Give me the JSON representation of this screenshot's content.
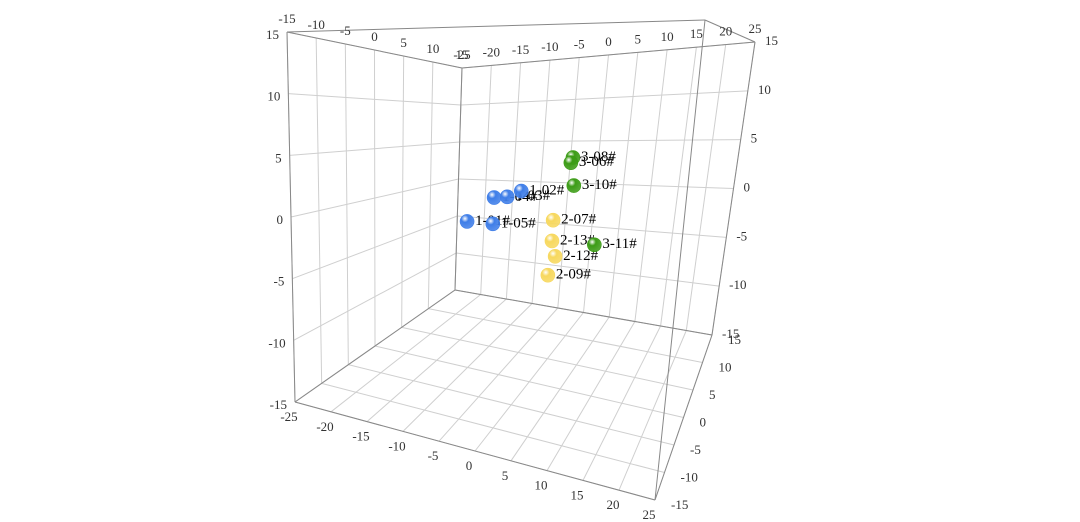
{
  "chart_data": {
    "type": "scatter3d",
    "xlim": [
      -25,
      25
    ],
    "ylim": [
      -15,
      15
    ],
    "zlim": [
      -15,
      15
    ],
    "xticks": [
      -25,
      -20,
      -15,
      -10,
      -5,
      0,
      5,
      10,
      15,
      20,
      25
    ],
    "yticks": [
      -15,
      -10,
      -5,
      0,
      5,
      10,
      15
    ],
    "zticks": [
      -15,
      -10,
      -5,
      0,
      5,
      10,
      15
    ],
    "grid": true,
    "series": [
      {
        "color": "#3f7ee8",
        "labels": [
          "1-01#",
          "1-05#",
          "1-04#",
          "1-03#",
          "1-02#"
        ],
        "x": [
          -11,
          -7.1,
          -7.1,
          -5.15,
          -3.1
        ],
        "y": [
          0,
          0,
          0,
          0,
          0
        ],
        "z": [
          -1.5,
          -1.5,
          0.9,
          1.05,
          1.65
        ]
      },
      {
        "color": "#f7d85e",
        "labels": [
          "2-07#",
          "2-13#",
          "2-12#",
          "2-09#"
        ],
        "x": [
          1.95,
          2.0,
          2.65,
          1.75
        ],
        "y": [
          0,
          0,
          0,
          0
        ],
        "z": [
          -0.7,
          -2.5,
          -3.8,
          -5.5
        ]
      },
      {
        "color": "#3c9c16",
        "labels": [
          "3-08#",
          "3-06#",
          "3-10#",
          "3-11#"
        ],
        "x": [
          4.2,
          3.95,
          4.65,
          8.45
        ],
        "y": [
          0,
          0,
          0,
          0
        ],
        "z": [
          4.8,
          4.35,
          2.4,
          -2.46
        ]
      }
    ]
  }
}
